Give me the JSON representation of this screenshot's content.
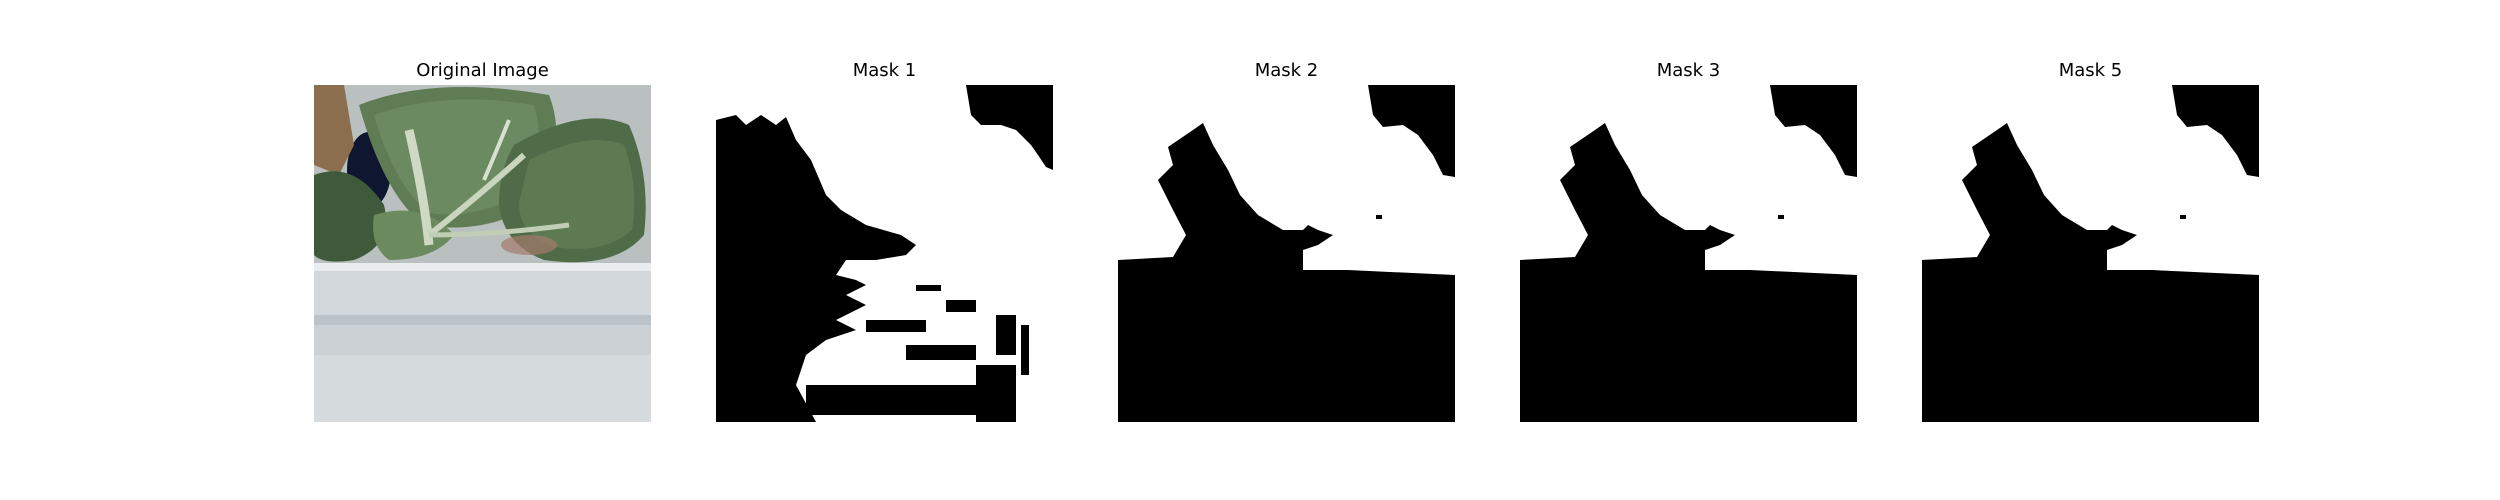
{
  "figure": {
    "panels": [
      {
        "title": "Original Image",
        "kind": "photo"
      },
      {
        "title": "Mask 1",
        "kind": "mask"
      },
      {
        "title": "Mask 2",
        "kind": "mask"
      },
      {
        "title": "Mask 3",
        "kind": "mask"
      },
      {
        "title": "Mask 5",
        "kind": "mask"
      }
    ],
    "colors": {
      "mask_foreground": "#ffffff",
      "mask_background": "#000000",
      "leaf_dark": "#3f5a3b",
      "leaf_mid": "#5f7c55",
      "leaf_light": "#8fa57e",
      "tray": "#d3d8dc"
    }
  }
}
